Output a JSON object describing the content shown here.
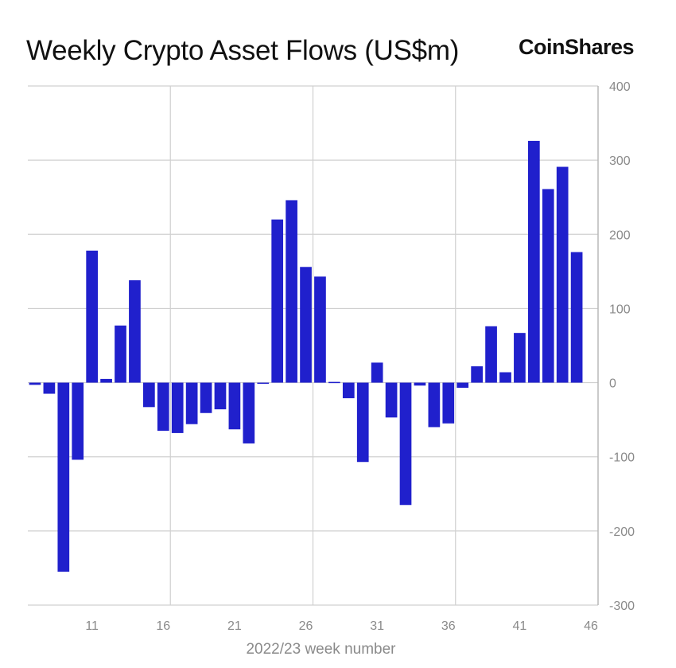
{
  "brand": {
    "name": "CoinShares"
  },
  "colors": {
    "bar": "#2020cc",
    "grid": "#d0d0d0",
    "axis": "#b8b8b8",
    "tick": "#8a8a8a"
  },
  "chart_data": {
    "type": "bar",
    "title": "Weekly Crypto Asset Flows (US$m)",
    "xlabel": "2022/23 week number",
    "ylabel": "",
    "ylim": [
      -300,
      400
    ],
    "y_ticks": [
      400,
      300,
      200,
      100,
      0,
      -100,
      -200,
      -300
    ],
    "y_axis_position": "right",
    "x_ticks": [
      11,
      16,
      21,
      26,
      31,
      36,
      41,
      46
    ],
    "grid": true,
    "categories": [
      7,
      8,
      9,
      10,
      11,
      12,
      13,
      14,
      15,
      16,
      17,
      18,
      19,
      20,
      21,
      22,
      23,
      24,
      25,
      26,
      27,
      28,
      29,
      30,
      31,
      32,
      33,
      34,
      35,
      36,
      37,
      38,
      39,
      40,
      41,
      42,
      43,
      44,
      45,
      46
    ],
    "values": [
      -3,
      -15,
      -255,
      -104,
      178,
      5,
      77,
      138,
      -33,
      -65,
      -68,
      -56,
      -41,
      -36,
      -63,
      -82,
      -1,
      220,
      246,
      156,
      143,
      1,
      -21,
      -107,
      27,
      -47,
      -165,
      -4,
      -60,
      -55,
      -7,
      22,
      76,
      14,
      67,
      326,
      261,
      291,
      176,
      0
    ]
  }
}
